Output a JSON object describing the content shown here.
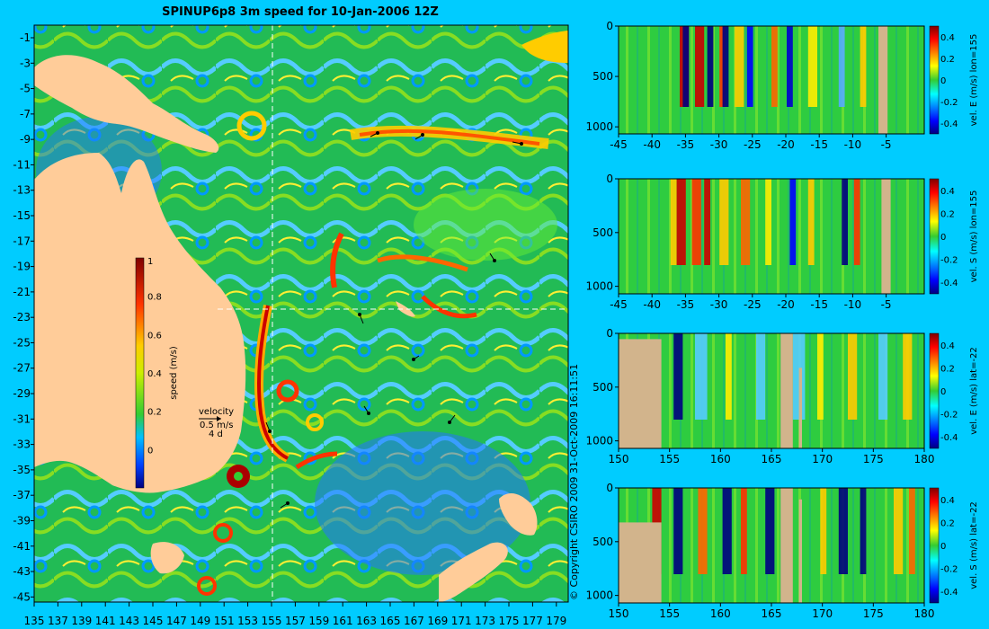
{
  "header": {
    "title": "SPINUP6p8 3m speed for 10-Jan-2006 12Z"
  },
  "copyright": "© Copyright CSIRO 2009   31-Oct-2009 16:11:51",
  "map": {
    "xticks": [
      "135",
      "137",
      "139",
      "141",
      "143",
      "145",
      "147",
      "149",
      "151",
      "153",
      "155",
      "157",
      "159",
      "161",
      "163",
      "165",
      "167",
      "169",
      "171",
      "173",
      "175",
      "177",
      "179"
    ],
    "yticks": [
      "-1",
      "-3",
      "-5",
      "-7",
      "-9",
      "-11",
      "-13",
      "-15",
      "-17",
      "-19",
      "-21",
      "-23",
      "-25",
      "-27",
      "-29",
      "-31",
      "-33",
      "-35",
      "-37",
      "-39",
      "-41",
      "-43",
      "-45"
    ],
    "colorbar": {
      "label": "speed (m/s)",
      "ticks": [
        "1",
        "0.8",
        "0.6",
        "0.4",
        "0.2",
        "0"
      ]
    },
    "velocity": {
      "title": "velocity",
      "scale": "0.5 m/s",
      "duration": "4 d"
    },
    "section_lon": 155,
    "section_lat": -22
  },
  "chart_data": [
    {
      "type": "heatmap",
      "title": "",
      "ylabel": "vel. E (m/s) lon=155",
      "xticks": [
        "-45",
        "-40",
        "-35",
        "-30",
        "-25",
        "-20",
        "-15",
        "-10",
        "-5"
      ],
      "yticks": [
        "0",
        "500",
        "1000"
      ],
      "cbar_ticks": [
        "0.4",
        "0.2",
        "0",
        "-0.2",
        "-0.4"
      ]
    },
    {
      "type": "heatmap",
      "title": "",
      "ylabel": "vel. S (m/s) lon=155",
      "xticks": [
        "-45",
        "-40",
        "-35",
        "-30",
        "-25",
        "-20",
        "-15",
        "-10",
        "-5"
      ],
      "yticks": [
        "0",
        "500",
        "1000"
      ],
      "cbar_ticks": [
        "0.4",
        "0.2",
        "0",
        "-0.2",
        "-0.4"
      ]
    },
    {
      "type": "heatmap",
      "title": "",
      "ylabel": "vel. E (m/s) lat=-22",
      "xticks": [
        "150",
        "155",
        "160",
        "165",
        "170",
        "175",
        "180"
      ],
      "yticks": [
        "0",
        "500",
        "1000"
      ],
      "cbar_ticks": [
        "0.4",
        "0.2",
        "0",
        "-0.2",
        "-0.4"
      ]
    },
    {
      "type": "heatmap",
      "title": "",
      "ylabel": "vel. S (m/s) lat=-22",
      "xticks": [
        "150",
        "155",
        "160",
        "165",
        "170",
        "175",
        "180"
      ],
      "yticks": [
        "0",
        "500",
        "1000"
      ],
      "cbar_ticks": [
        "0.4",
        "0.2",
        "0",
        "-0.2",
        "-0.4"
      ]
    }
  ],
  "colors": {
    "background": "#00ccff",
    "land": "#ffcc99",
    "section_land": "#d2b48c"
  }
}
